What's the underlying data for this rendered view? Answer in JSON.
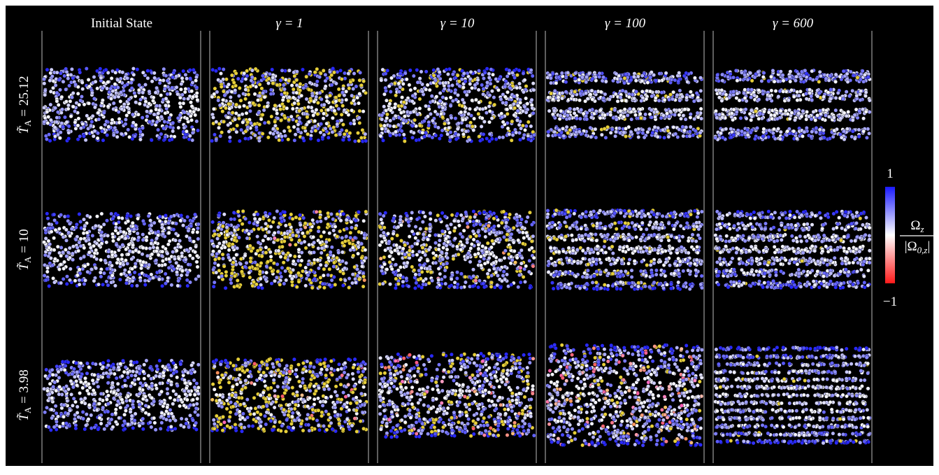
{
  "columns": [
    "Initial State",
    "γ = 1",
    "γ = 10",
    "γ = 100",
    "γ = 600"
  ],
  "rows": [
    {
      "symbol": "T̃",
      "sub": "A",
      "rest": " = 25.12"
    },
    {
      "symbol": "T̃",
      "sub": "A",
      "rest": " = 10"
    },
    {
      "symbol": "T̃",
      "sub": "A",
      "rest": " = 3.98"
    }
  ],
  "colorbar": {
    "top": "1",
    "bottom": "−1",
    "numerator": {
      "base": "Ω",
      "sub": "z"
    },
    "denominator": {
      "base": "|Ω",
      "sub": "0,z",
      "tail": "|"
    }
  }
}
